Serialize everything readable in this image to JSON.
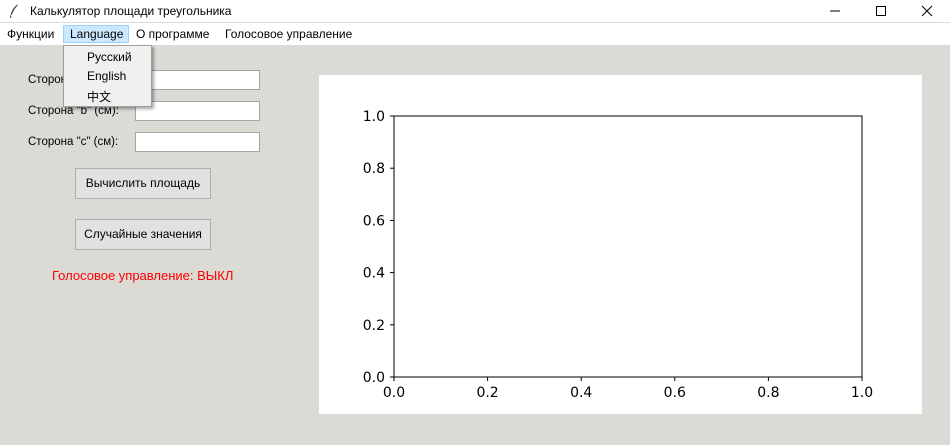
{
  "window": {
    "title": "Калькулятор площади треугольника"
  },
  "menubar": {
    "items": [
      "Функции",
      "Language",
      "О программе",
      "Голосовое управление"
    ],
    "active_item": "Language"
  },
  "language_menu": {
    "options": [
      "Русский",
      "English",
      "中文"
    ]
  },
  "form": {
    "side_a_label": "Сторона \"a\" (см):",
    "side_b_label": "Сторона \"b\" (см):",
    "side_c_label": "Сторона \"c\" (см):",
    "side_a_value": "",
    "side_b_value": "",
    "side_c_value": "",
    "calculate_button": "Вычислить площадь",
    "random_button": "Случайные значения",
    "voice_status": "Голосовое управление: ВЫКЛ"
  },
  "colors": {
    "status_off": "#ff0000",
    "menu_highlight": "#cce8ff"
  },
  "chart_data": {
    "type": "line",
    "series": [],
    "xlim": [
      0.0,
      1.0
    ],
    "ylim": [
      0.0,
      1.0
    ],
    "xticks": [
      "0.0",
      "0.2",
      "0.4",
      "0.6",
      "0.8",
      "1.0"
    ],
    "yticks": [
      "0.0",
      "0.2",
      "0.4",
      "0.6",
      "0.8",
      "1.0"
    ],
    "title": "",
    "xlabel": "",
    "ylabel": "",
    "grid": false
  }
}
